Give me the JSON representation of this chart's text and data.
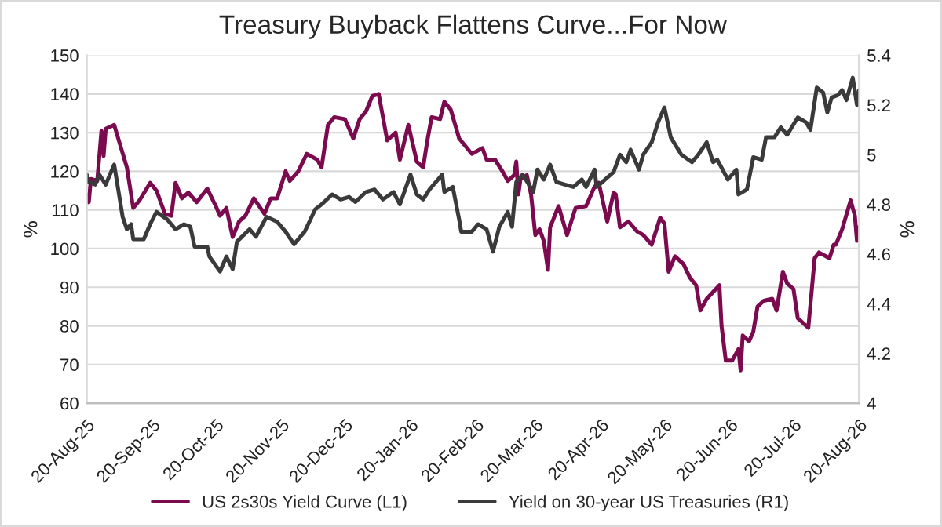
{
  "chart_data": {
    "type": "line",
    "title": "Treasury Buyback Flattens Curve...For Now",
    "ylabel": "%",
    "y2label": "%",
    "xlim": [
      "2025-08-20",
      "2026-08-20"
    ],
    "xticks": [
      {
        "value": "2025-08-20",
        "label": "20-Aug-25"
      },
      {
        "value": "2025-09-20",
        "label": "20-Sep-25"
      },
      {
        "value": "2025-10-20",
        "label": "20-Oct-25"
      },
      {
        "value": "2025-11-20",
        "label": "20-Nov-25"
      },
      {
        "value": "2025-12-20",
        "label": "20-Dec-25"
      },
      {
        "value": "2026-01-20",
        "label": "20-Jan-26"
      },
      {
        "value": "2026-02-20",
        "label": "20-Feb-26"
      },
      {
        "value": "2026-03-20",
        "label": "20-Mar-26"
      },
      {
        "value": "2026-04-20",
        "label": "20-Apr-26"
      },
      {
        "value": "2026-05-20",
        "label": "20-May-26"
      },
      {
        "value": "2026-06-20",
        "label": "20-Jun-26"
      },
      {
        "value": "2026-07-20",
        "label": "20-Jul-26"
      },
      {
        "value": "2026-08-20",
        "label": "20-Aug-26"
      }
    ],
    "ylim": [
      60,
      150
    ],
    "yticks": [
      60,
      70,
      80,
      90,
      100,
      110,
      120,
      130,
      140,
      150
    ],
    "y2lim": [
      4,
      5.4
    ],
    "y2ticks": [
      4,
      4.2,
      4.4,
      4.6,
      4.8,
      5,
      5.2,
      5.4
    ],
    "grid": "y",
    "legend": "bottom",
    "series": [
      {
        "name": "US 2s30s Yield Curve (L1)",
        "color": "#7b0a4f",
        "x": [
          "2025-08-20",
          "2025-08-21",
          "2025-08-22",
          "2025-08-25",
          "2025-08-27",
          "2025-08-28",
          "2025-08-29",
          "2025-09-02",
          "2025-09-05",
          "2025-09-08",
          "2025-09-11",
          "2025-09-14",
          "2025-09-19",
          "2025-09-22",
          "2025-09-26",
          "2025-09-29",
          "2025-10-01",
          "2025-10-04",
          "2025-10-07",
          "2025-10-11",
          "2025-10-16",
          "2025-10-20",
          "2025-10-22",
          "2025-10-25",
          "2025-10-28",
          "2025-10-31",
          "2025-11-03",
          "2025-11-07",
          "2025-11-12",
          "2025-11-15",
          "2025-11-18",
          "2025-11-22",
          "2025-11-24",
          "2025-11-28",
          "2025-12-02",
          "2025-12-07",
          "2025-12-09",
          "2025-12-12",
          "2025-12-15",
          "2025-12-20",
          "2025-12-24",
          "2025-12-27",
          "2025-12-30",
          "2026-01-02",
          "2026-01-05",
          "2026-01-09",
          "2026-01-13",
          "2026-01-15",
          "2026-01-19",
          "2026-01-23",
          "2026-01-26",
          "2026-01-28",
          "2026-01-30",
          "2026-02-03",
          "2026-02-05",
          "2026-02-08",
          "2026-02-12",
          "2026-02-18",
          "2026-02-23",
          "2026-02-25",
          "2026-03-01",
          "2026-03-05",
          "2026-03-07",
          "2026-03-10",
          "2026-03-11",
          "2026-03-12",
          "2026-03-13",
          "2026-03-16",
          "2026-03-18",
          "2026-03-20",
          "2026-03-22",
          "2026-03-24",
          "2026-03-26",
          "2026-03-27",
          "2026-03-31",
          "2026-04-04",
          "2026-04-08",
          "2026-04-13",
          "2026-04-17",
          "2026-04-19",
          "2026-04-23",
          "2026-04-26",
          "2026-04-27",
          "2026-04-29",
          "2026-05-03",
          "2026-05-07",
          "2026-05-10",
          "2026-05-14",
          "2026-05-18",
          "2026-05-20",
          "2026-05-22",
          "2026-05-25",
          "2026-05-29",
          "2026-06-01",
          "2026-06-04",
          "2026-06-06",
          "2026-06-09",
          "2026-06-15",
          "2026-06-16",
          "2026-06-18",
          "2026-06-21",
          "2026-06-24",
          "2026-06-25",
          "2026-06-26",
          "2026-06-29",
          "2026-07-01",
          "2026-07-03",
          "2026-07-06",
          "2026-07-10",
          "2026-07-12",
          "2026-07-15",
          "2026-07-17",
          "2026-07-20",
          "2026-07-22",
          "2026-07-27",
          "2026-07-30",
          "2026-08-01",
          "2026-08-06",
          "2026-08-08",
          "2026-08-09",
          "2026-08-12",
          "2026-08-16",
          "2026-08-18",
          "2026-08-19",
          "2026-08-20"
        ],
        "values": [
          114,
          112,
          118,
          117.5,
          130.5,
          124,
          131,
          132,
          126.5,
          121,
          110.5,
          112.5,
          117,
          115,
          109,
          108.5,
          117,
          113,
          114.5,
          112,
          115.5,
          111,
          108.5,
          110.5,
          103,
          107,
          108.5,
          113,
          109,
          113,
          113,
          120,
          117.5,
          120,
          124.5,
          123,
          121,
          132,
          134,
          133.5,
          128.5,
          133.5,
          135.5,
          139.5,
          140,
          128,
          130,
          123,
          132,
          122.5,
          121,
          128,
          134,
          133.5,
          138,
          136,
          128.5,
          124.5,
          126,
          123,
          123,
          119.5,
          117.5,
          119,
          122.5,
          114,
          118,
          119,
          114,
          103.5,
          105,
          102,
          94.5,
          105.5,
          111,
          103.5,
          110.5,
          111,
          116,
          117,
          107,
          114.5,
          114,
          105.5,
          107,
          104.5,
          103.5,
          101,
          108,
          106.5,
          94,
          98,
          96,
          92.5,
          90.5,
          84,
          87,
          90.5,
          80,
          71,
          71,
          74,
          68.5,
          77.5,
          76,
          78.5,
          85,
          86.5,
          87,
          84,
          94,
          91,
          89.5,
          82,
          79.5,
          97.5,
          99,
          97.5,
          101,
          101,
          105,
          112.5,
          108.5,
          102,
          105.5
        ]
      },
      {
        "name": "Yield on 30-year US Treasuries (R1)",
        "color": "#3a3a3a",
        "axis": "y2",
        "x": [
          "2025-08-20",
          "2025-08-21",
          "2025-08-24",
          "2025-08-26",
          "2025-08-29",
          "2025-09-02",
          "2025-09-06",
          "2025-09-08",
          "2025-09-10",
          "2025-09-11",
          "2025-09-16",
          "2025-09-19",
          "2025-09-22",
          "2025-09-27",
          "2025-10-01",
          "2025-10-05",
          "2025-10-08",
          "2025-10-10",
          "2025-10-16",
          "2025-10-17",
          "2025-10-22",
          "2025-10-25",
          "2025-10-28",
          "2025-10-30",
          "2025-11-05",
          "2025-11-08",
          "2025-11-13",
          "2025-11-18",
          "2025-11-22",
          "2025-11-26",
          "2025-12-01",
          "2025-12-06",
          "2025-12-09",
          "2025-12-14",
          "2025-12-18",
          "2025-12-22",
          "2025-12-25",
          "2025-12-30",
          "2026-01-03",
          "2026-01-07",
          "2026-01-12",
          "2026-01-15",
          "2026-01-20",
          "2026-01-23",
          "2026-01-26",
          "2026-01-29",
          "2026-02-04",
          "2026-02-05",
          "2026-02-09",
          "2026-02-12",
          "2026-02-13",
          "2026-02-18",
          "2026-02-21",
          "2026-02-25",
          "2026-02-28",
          "2026-03-03",
          "2026-03-07",
          "2026-03-09",
          "2026-03-11",
          "2026-03-14",
          "2026-03-17",
          "2026-03-19",
          "2026-03-21",
          "2026-03-24",
          "2026-03-27",
          "2026-03-30",
          "2026-04-03",
          "2026-04-07",
          "2026-04-11",
          "2026-04-13",
          "2026-04-17",
          "2026-04-18",
          "2026-04-22",
          "2026-04-26",
          "2026-04-29",
          "2026-05-02",
          "2026-05-04",
          "2026-05-08",
          "2026-05-10",
          "2026-05-14",
          "2026-05-17",
          "2026-05-20",
          "2026-05-23",
          "2026-05-28",
          "2026-06-02",
          "2026-06-05",
          "2026-06-09",
          "2026-06-12",
          "2026-06-14",
          "2026-06-19",
          "2026-06-23",
          "2026-06-24",
          "2026-06-28",
          "2026-07-01",
          "2026-07-05",
          "2026-07-07",
          "2026-07-11",
          "2026-07-14",
          "2026-07-17",
          "2026-07-22",
          "2026-07-26",
          "2026-07-28",
          "2026-07-31",
          "2026-08-03",
          "2026-08-05",
          "2026-08-07",
          "2026-08-10",
          "2026-08-12",
          "2026-08-14",
          "2026-08-17",
          "2026-08-19",
          "2026-08-20"
        ],
        "values": [
          4.92,
          4.89,
          4.88,
          4.92,
          4.88,
          4.96,
          4.75,
          4.7,
          4.72,
          4.66,
          4.66,
          4.72,
          4.77,
          4.74,
          4.7,
          4.72,
          4.71,
          4.63,
          4.63,
          4.59,
          4.53,
          4.59,
          4.54,
          4.65,
          4.7,
          4.67,
          4.75,
          4.73,
          4.69,
          4.64,
          4.69,
          4.78,
          4.8,
          4.84,
          4.82,
          4.83,
          4.81,
          4.85,
          4.86,
          4.82,
          4.85,
          4.8,
          4.92,
          4.84,
          4.82,
          4.86,
          4.92,
          4.85,
          4.87,
          4.74,
          4.69,
          4.69,
          4.72,
          4.7,
          4.61,
          4.71,
          4.77,
          4.71,
          4.89,
          4.92,
          4.88,
          4.85,
          4.94,
          4.9,
          4.96,
          4.89,
          4.88,
          4.87,
          4.9,
          4.87,
          4.94,
          4.87,
          4.9,
          4.93,
          5.0,
          4.97,
          5.02,
          4.94,
          5.0,
          5.05,
          5.13,
          5.19,
          5.07,
          5.0,
          4.97,
          5.0,
          5.05,
          4.97,
          4.98,
          4.9,
          4.94,
          4.84,
          4.86,
          4.99,
          4.98,
          5.07,
          5.07,
          5.11,
          5.08,
          5.15,
          5.13,
          5.1,
          5.27,
          5.25,
          5.17,
          5.23,
          5.24,
          5.26,
          5.22,
          5.31,
          5.2,
          5.26
        ]
      }
    ]
  }
}
